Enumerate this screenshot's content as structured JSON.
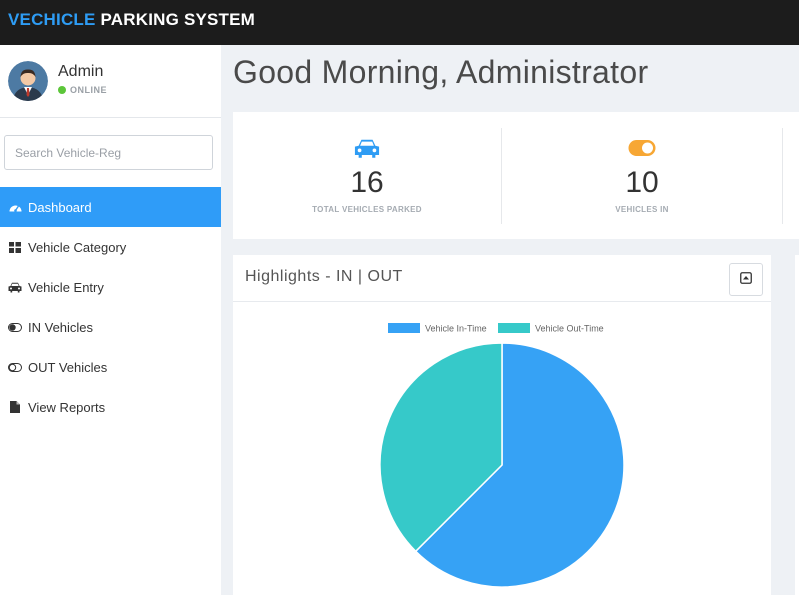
{
  "brand": {
    "part1": "VECHICLE",
    "part2": " PARKING SYSTEM"
  },
  "user": {
    "name": "Admin",
    "status": "ONLINE"
  },
  "search": {
    "placeholder": "Search Vehicle-Reg"
  },
  "menu": {
    "items": [
      {
        "label": "Dashboard",
        "icon": "dashboard-icon"
      },
      {
        "label": "Vehicle Category",
        "icon": "grid-icon"
      },
      {
        "label": "Vehicle Entry",
        "icon": "car-icon"
      },
      {
        "label": "IN Vehicles",
        "icon": "toggle-on-icon"
      },
      {
        "label": "OUT Vehicles",
        "icon": "toggle-off-icon"
      },
      {
        "label": "View Reports",
        "icon": "file-icon"
      }
    ]
  },
  "greeting": "Good Morning, Administrator",
  "stats": [
    {
      "value": "16",
      "label": "TOTAL VEHICLES PARKED",
      "icon": "car-icon",
      "color": "#2e9cf4"
    },
    {
      "value": "10",
      "label": "VEHICLES IN",
      "icon": "toggle-on-icon",
      "color": "#f7a734"
    }
  ],
  "highlights": {
    "title": "Highlights - IN | OUT"
  },
  "chart_data": {
    "type": "pie",
    "categories": [
      "Vehicle In-Time",
      "Vehicle Out-Time"
    ],
    "values": [
      10,
      6
    ],
    "colors": [
      "#36a2f5",
      "#36c9c9"
    ],
    "title": "",
    "legend_position": "top"
  }
}
